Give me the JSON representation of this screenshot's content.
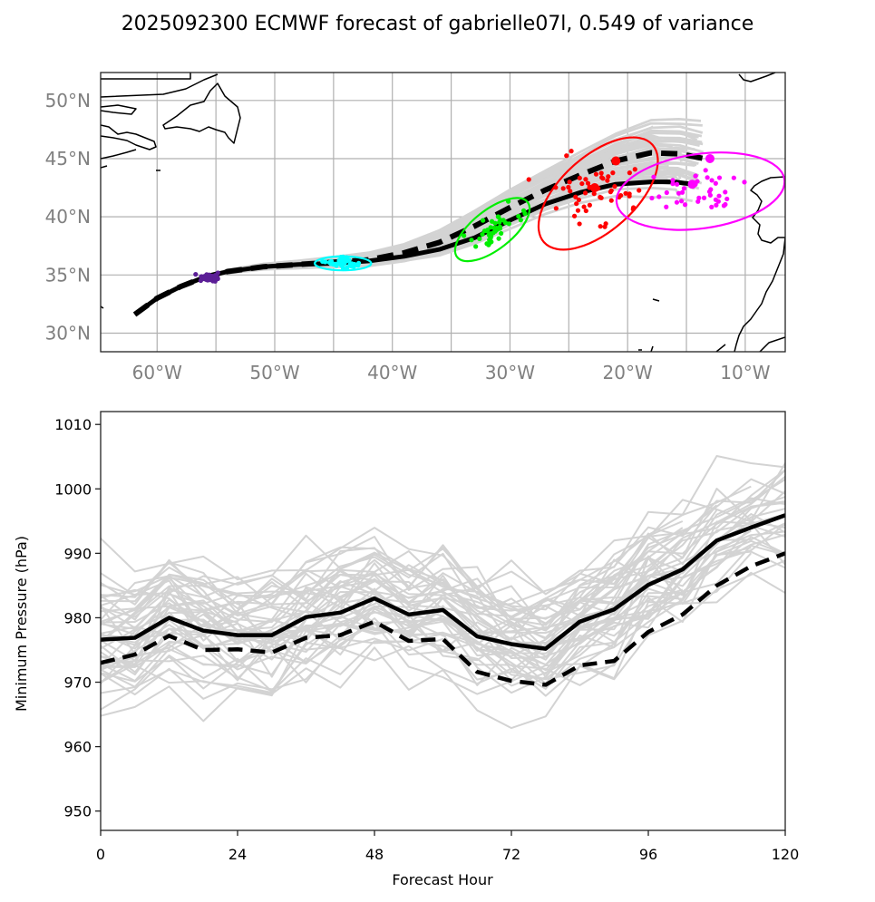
{
  "title": "2025092300 ECMWF forecast of gabrielle07l, 0.549 of variance",
  "chart_data": [
    {
      "type": "map-track",
      "name": "track-map",
      "xlim": [
        -64.8,
        -6.6
      ],
      "ylim": [
        28.4,
        52.4
      ],
      "grid": true,
      "x_ticks": [
        -60,
        -50,
        -40,
        -30,
        -20,
        -10
      ],
      "x_tick_labels": [
        "60°W",
        "50°W",
        "40°W",
        "30°W",
        "20°W",
        "10°W"
      ],
      "y_ticks": [
        30,
        35,
        40,
        45,
        50
      ],
      "y_tick_labels": [
        "30°N",
        "35°N",
        "40°N",
        "45°N",
        "50°N"
      ],
      "colors": {
        "ensemble": "#d3d3d3",
        "mean": "#000000",
        "h0": "#5b1e96",
        "h24": "#00ffff",
        "h48": "#00ee00",
        "h72": "#ff0000",
        "h96": "#ff00ff"
      },
      "mean_track": {
        "style": "solid",
        "lon": [
          -61.9,
          -60.0,
          -58.0,
          -56.0,
          -54.0,
          -51.0,
          -48.0,
          -45.0,
          -42.0,
          -39.0,
          -36.0,
          -33.0,
          -30.0,
          -27.0,
          -24.0,
          -21.0,
          -18.0,
          -16.0,
          -14.5
        ],
        "lat": [
          31.6,
          33.0,
          34.0,
          34.8,
          35.3,
          35.7,
          35.9,
          36.0,
          36.2,
          36.6,
          37.2,
          38.2,
          39.7,
          41.1,
          42.1,
          42.8,
          43.0,
          43.0,
          42.8
        ]
      },
      "dashed_track": {
        "style": "dashed",
        "lon": [
          -61.9,
          -60.0,
          -58.0,
          -56.0,
          -54.0,
          -51.0,
          -48.0,
          -45.0,
          -42.0,
          -39.0,
          -36.0,
          -33.0,
          -30.0,
          -27.0,
          -24.0,
          -21.0,
          -18.0,
          -15.5,
          -13.5
        ],
        "lat": [
          31.6,
          33.0,
          34.0,
          34.8,
          35.3,
          35.7,
          35.9,
          36.1,
          36.3,
          36.9,
          37.8,
          39.2,
          40.8,
          42.3,
          43.6,
          44.8,
          45.5,
          45.4,
          45.0
        ]
      },
      "clusters": [
        {
          "label": "0h",
          "color_key": "h0",
          "center": [
            -55.6,
            34.8
          ],
          "spread": [
            0.9,
            0.35
          ],
          "n": 40,
          "ellipse": null
        },
        {
          "label": "24h",
          "color_key": "h24",
          "center": [
            -44.2,
            36.0
          ],
          "spread": [
            1.5,
            0.45
          ],
          "n": 40,
          "ellipse": {
            "rx": 2.4,
            "ry": 0.6,
            "angle": 0
          }
        },
        {
          "label": "48h",
          "color_key": "h48",
          "center": [
            -31.5,
            38.9
          ],
          "spread": [
            2.5,
            1.2
          ],
          "n": 45,
          "ellipse": {
            "rx": 3.8,
            "ry": 1.7,
            "angle": -38
          }
        },
        {
          "label": "72h",
          "color_key": "h72",
          "center": [
            -22.5,
            42.0
          ],
          "spread": [
            4.0,
            2.6
          ],
          "n": 55,
          "ellipse": {
            "rx": 6.2,
            "ry": 3.2,
            "angle": -42
          }
        },
        {
          "label": "96h",
          "color_key": "h96",
          "center": [
            -13.8,
            42.2
          ],
          "spread": [
            3.2,
            1.8
          ],
          "n": 40,
          "ellipse": {
            "rx": 7.2,
            "ry": 3.2,
            "angle": -8
          }
        }
      ],
      "mean_markers": [
        {
          "color_key": "h72",
          "lon": -21.0,
          "lat": 44.8
        },
        {
          "color_key": "h72",
          "lon": -22.8,
          "lat": 42.5
        },
        {
          "color_key": "h96",
          "lon": -13.0,
          "lat": 45.0
        },
        {
          "color_key": "h96",
          "lon": -14.5,
          "lat": 42.8
        }
      ]
    },
    {
      "type": "line",
      "name": "pressure-chart",
      "title": "",
      "xlabel": "Forecast Hour",
      "ylabel": "Minimum Pressure (hPa)",
      "xlim": [
        0,
        120
      ],
      "ylim": [
        947,
        1012
      ],
      "x_ticks": [
        0,
        24,
        48,
        72,
        96,
        120
      ],
      "y_ticks": [
        950,
        960,
        970,
        980,
        990,
        1000,
        1010
      ],
      "grid": false,
      "x": [
        0,
        6,
        12,
        18,
        24,
        30,
        36,
        42,
        48,
        54,
        60,
        66,
        72,
        78,
        84,
        90,
        96,
        102,
        108,
        114,
        120
      ],
      "series": [
        {
          "name": "ensemble-mean",
          "style": "solid",
          "color": "#000000",
          "values": [
            976.6,
            976.9,
            980.0,
            978.0,
            977.3,
            977.3,
            980.1,
            980.8,
            983.0,
            980.5,
            981.2,
            977.1,
            975.9,
            975.2,
            979.4,
            981.3,
            985.1,
            987.5,
            992.0,
            994.0,
            995.9
          ]
        },
        {
          "name": "deterministic",
          "style": "dashed",
          "color": "#000000",
          "values": [
            973.0,
            974.3,
            977.2,
            975.0,
            975.1,
            974.6,
            976.9,
            977.3,
            979.4,
            976.4,
            976.7,
            971.6,
            970.2,
            969.6,
            972.6,
            973.3,
            977.8,
            980.5,
            985.0,
            988.0,
            990.0
          ]
        }
      ],
      "ensemble_color": "#d3d3d3",
      "ensemble_count": 50,
      "ensemble_spread_note": "gray member traces spanning roughly 950-1010 hPa"
    }
  ]
}
